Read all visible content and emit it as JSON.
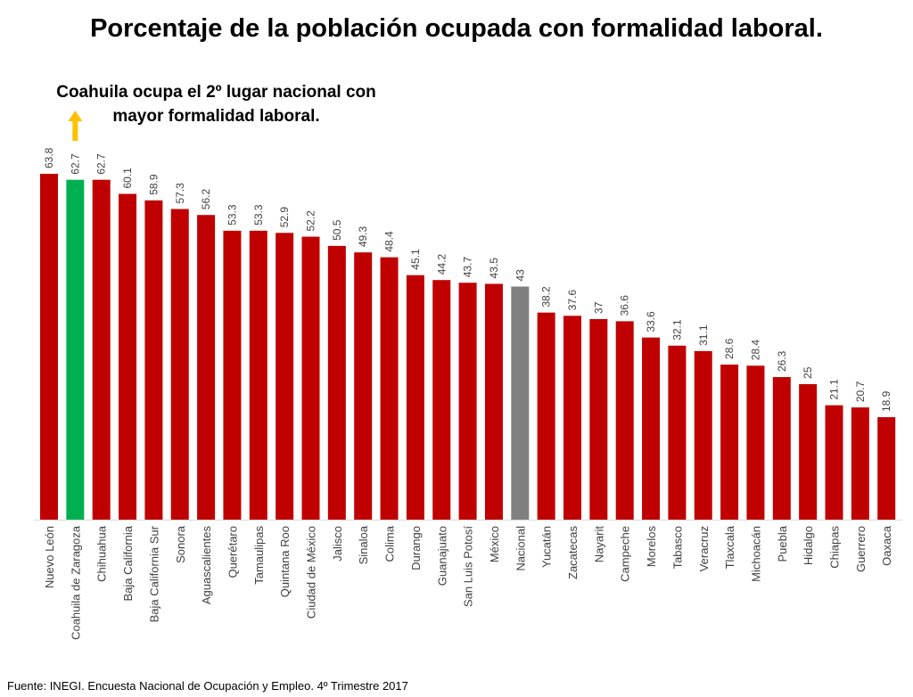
{
  "chart_data": {
    "type": "bar",
    "title": "Porcentaje de la población ocupada con formalidad laboral.",
    "annotation": [
      "Coahuila ocupa el 2º lugar nacional con",
      "mayor formalidad laboral."
    ],
    "source": "Fuente: INEGI. Encuesta Nacional de Ocupación y Empleo. 4º Trimestre 2017",
    "xlabel": "",
    "ylabel": "",
    "ylim": [
      0,
      65
    ],
    "categories": [
      "Nuevo León",
      "Coahuila de Zaragoza",
      "Chihuahua",
      "Baja California",
      "Baja California Sur",
      "Sonora",
      "Aguascalientes",
      "Querétaro",
      "Tamaulipas",
      "Quintana Roo",
      "Ciudad de México",
      "Jalisco",
      "Sinaloa",
      "Colima",
      "Durango",
      "Guanajuato",
      "San Luis Potosí",
      "México",
      "Nacional",
      "Yucatán",
      "Zacatecas",
      "Nayarit",
      "Campeche",
      "Morelos",
      "Tabasco",
      "Veracruz",
      "Tlaxcala",
      "Michoacán",
      "Puebla",
      "Hidalgo",
      "Chiapas",
      "Guerrero",
      "Oaxaca"
    ],
    "values": [
      63.8,
      62.7,
      62.7,
      60.1,
      58.9,
      57.3,
      56.2,
      53.3,
      53.3,
      52.9,
      52.2,
      50.5,
      49.3,
      48.4,
      45.1,
      44.2,
      43.7,
      43.5,
      43,
      38.2,
      37.6,
      37,
      36.6,
      33.6,
      32.1,
      31.1,
      28.6,
      28.4,
      26.3,
      25,
      21.1,
      20.7,
      18.9
    ],
    "colors": {
      "default": "#C00000",
      "highlight": "#00B050",
      "national": "#808080",
      "arrow": "#FFC000"
    },
    "highlight_category": "Coahuila de Zaragoza",
    "national_category": "Nacional"
  }
}
